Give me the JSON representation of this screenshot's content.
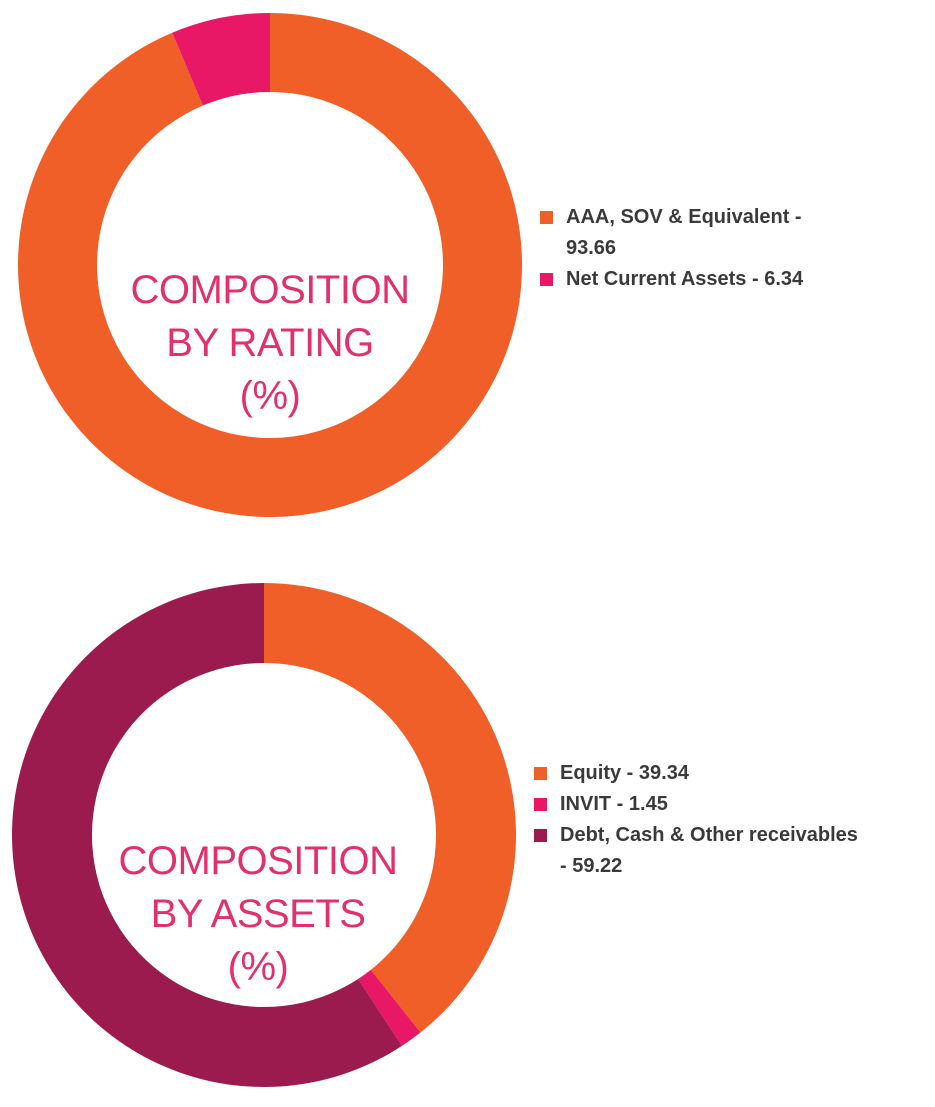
{
  "chart_data": [
    {
      "type": "pie",
      "donut": true,
      "title": [
        "COMPOSITION",
        "BY RATING",
        "(%)"
      ],
      "slices": [
        {
          "label": "AAA, SOV & Equivalent",
          "label_line1": "AAA, SOV & Equivalent -",
          "label_line2": "93.66",
          "value": 93.66,
          "color": "#F05F28"
        },
        {
          "label": "Net Current Assets",
          "label_line1": "Net Current Assets - 6.34",
          "value": 6.34,
          "color": "#E91866"
        }
      ],
      "legend_position": "right",
      "start_angle": "top, clockwise"
    },
    {
      "type": "pie",
      "donut": true,
      "title": [
        "COMPOSITION",
        "BY ASSETS",
        "(%)"
      ],
      "slices": [
        {
          "label": "Equity",
          "label_line1": "Equity - 39.34",
          "value": 39.34,
          "color": "#F05F28"
        },
        {
          "label": "INVIT",
          "label_line1": "INVIT - 1.45",
          "value": 1.45,
          "color": "#E91866"
        },
        {
          "label": "Debt, Cash & Other receivables",
          "label_line1": "Debt, Cash & Other receivables",
          "label_line2": "- 59.22",
          "value": 59.22,
          "color": "#9B1B4E"
        }
      ],
      "legend_position": "right",
      "start_angle": "top, clockwise"
    }
  ]
}
